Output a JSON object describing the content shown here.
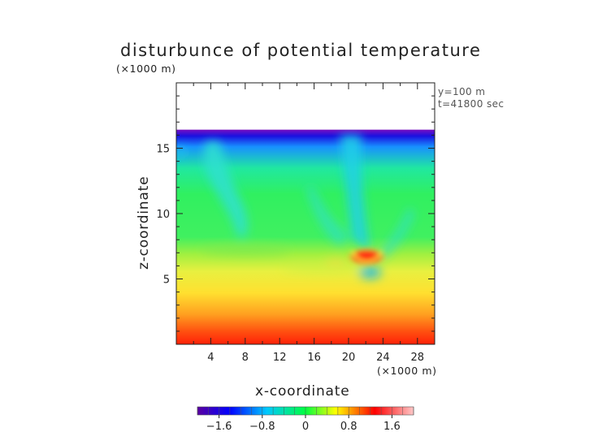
{
  "chart_data": {
    "type": "heatmap",
    "title": "disturbunce of potential temperature",
    "y_unit": "(×1000 m)",
    "x_unit": "(×1000 m)",
    "xlabel": "x-coordinate",
    "ylabel": "z-coordinate",
    "x_ticks": [
      "4",
      "8",
      "12",
      "16",
      "20",
      "24",
      "28"
    ],
    "y_ticks": [
      "5",
      "10",
      "15"
    ],
    "xlim": [
      0,
      30
    ],
    "ylim": [
      0,
      20
    ],
    "annotations": [
      "y=100 m",
      "t=41800 sec"
    ],
    "colorbar": {
      "range": [
        -2.0,
        2.0
      ],
      "tick_labels": [
        "−1.6",
        "−0.8",
        "0",
        "0.8",
        "1.6"
      ],
      "tick_values": [
        -1.6,
        -0.8,
        0,
        0.8,
        1.6
      ]
    },
    "field_top_z": 16.3,
    "color_scale": [
      "#5a00a0",
      "#0000ff",
      "#00e0ff",
      "#00ff40",
      "#ffff00",
      "#ff0000",
      "#ffc8c8"
    ]
  }
}
